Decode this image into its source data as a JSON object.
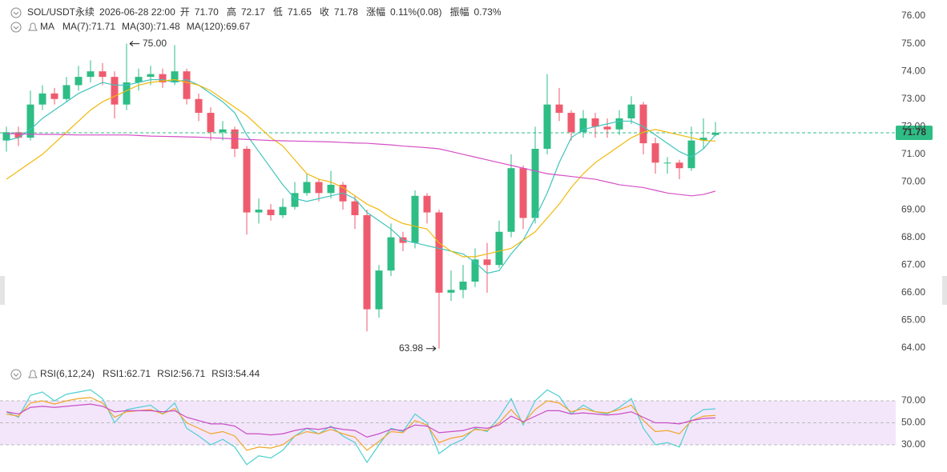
{
  "header": {
    "symbol": "SOL/USDT永续",
    "time": "2026-06-28 22:00",
    "fields": [
      {
        "label": "开",
        "value": "71.70"
      },
      {
        "label": "高",
        "value": "72.17"
      },
      {
        "label": "低",
        "value": "71.65"
      },
      {
        "label": "收",
        "value": "71.78"
      },
      {
        "label": "涨幅",
        "value": "0.11%(0.08)"
      },
      {
        "label": "振幅",
        "value": "0.73%"
      }
    ]
  },
  "chart_data": [
    {
      "type": "candlestick",
      "indicator": "MA",
      "up_color": "#2ebd85",
      "down_color": "#ef5b6e",
      "open": [
        71.5,
        71.8,
        71.6,
        72.8,
        73.2,
        73.0,
        73.5,
        73.8,
        74.0,
        73.8,
        72.8,
        73.6,
        73.8,
        73.9,
        73.6,
        74.0,
        73.0,
        72.5,
        71.8,
        71.9,
        71.2,
        68.9,
        69.0,
        68.8,
        69.1,
        69.6,
        70.0,
        69.6,
        69.9,
        69.3,
        68.8,
        65.4,
        66.8,
        68.0,
        67.8,
        69.5,
        68.9,
        66.0,
        66.1,
        66.4,
        67.2,
        67.0,
        68.2,
        70.5,
        68.7,
        71.2,
        72.8,
        72.5,
        71.8,
        72.3,
        72.0,
        71.9,
        72.3,
        72.8,
        71.4,
        70.7,
        70.7,
        70.5,
        71.5,
        71.7
      ],
      "high": [
        72.0,
        72.0,
        73.3,
        73.5,
        73.4,
        73.8,
        74.2,
        74.4,
        74.3,
        74.0,
        75.0,
        74.1,
        74.2,
        74.1,
        74.95,
        74.1,
        73.2,
        72.7,
        72.2,
        72.0,
        71.3,
        69.4,
        69.2,
        69.4,
        70.0,
        70.3,
        70.1,
        70.4,
        70.0,
        69.5,
        69.0,
        67.0,
        68.5,
        68.2,
        69.7,
        69.6,
        69.0,
        66.8,
        67.0,
        67.6,
        67.8,
        68.6,
        71.0,
        70.6,
        72.0,
        73.9,
        73.4,
        72.6,
        72.6,
        72.5,
        72.3,
        72.6,
        73.1,
        72.9,
        71.6,
        70.9,
        70.8,
        72.0,
        72.3,
        72.17
      ],
      "low": [
        71.1,
        71.3,
        71.5,
        72.6,
        72.8,
        72.9,
        73.3,
        73.6,
        73.5,
        72.3,
        72.6,
        73.3,
        73.5,
        73.4,
        73.5,
        72.8,
        72.2,
        71.5,
        71.5,
        70.9,
        68.1,
        68.5,
        68.6,
        68.7,
        69.0,
        69.5,
        69.3,
        69.4,
        69.0,
        68.3,
        64.6,
        65.1,
        66.6,
        67.5,
        67.6,
        68.5,
        63.98,
        65.7,
        65.8,
        66.2,
        66.0,
        66.9,
        68.0,
        68.3,
        68.5,
        71.0,
        72.2,
        71.5,
        71.6,
        71.6,
        71.6,
        71.7,
        72.1,
        71.0,
        70.3,
        70.3,
        70.1,
        70.4,
        71.2,
        71.65
      ],
      "close": [
        71.8,
        71.6,
        72.8,
        73.2,
        73.0,
        73.5,
        73.8,
        74.0,
        73.8,
        72.8,
        73.6,
        73.8,
        73.9,
        73.6,
        74.0,
        73.0,
        72.5,
        71.8,
        71.9,
        71.2,
        68.9,
        69.0,
        68.8,
        69.1,
        69.6,
        70.0,
        69.6,
        69.9,
        69.3,
        68.8,
        65.4,
        66.8,
        68.0,
        67.8,
        69.5,
        68.9,
        66.0,
        66.1,
        66.4,
        67.2,
        67.0,
        68.2,
        70.5,
        68.7,
        71.2,
        72.8,
        72.5,
        71.8,
        72.3,
        72.0,
        71.9,
        72.3,
        72.8,
        71.4,
        70.7,
        70.7,
        70.5,
        71.5,
        71.6,
        71.78
      ],
      "series": [
        {
          "name": "MA(7):71.71",
          "color": "#3fc4bd",
          "values": [
            71.5,
            71.6,
            71.9,
            72.3,
            72.6,
            72.9,
            73.2,
            73.4,
            73.6,
            73.5,
            73.5,
            73.6,
            73.7,
            73.7,
            73.6,
            73.7,
            73.5,
            73.2,
            72.9,
            72.5,
            71.7,
            71.1,
            70.5,
            69.9,
            69.4,
            69.3,
            69.4,
            69.5,
            69.6,
            69.4,
            68.9,
            68.6,
            68.3,
            67.9,
            67.8,
            67.7,
            67.6,
            67.5,
            67.4,
            67.1,
            66.7,
            66.8,
            67.4,
            67.9,
            68.7,
            69.6,
            70.7,
            71.6,
            71.9,
            72.0,
            72.1,
            72.2,
            72.2,
            72.0,
            71.7,
            71.4,
            71.1,
            70.9,
            71.2,
            71.71
          ]
        },
        {
          "name": "MA(30):71.48",
          "color": "#f0b90b",
          "values": [
            70.1,
            70.4,
            70.7,
            71.0,
            71.4,
            71.8,
            72.2,
            72.6,
            72.9,
            73.1,
            73.3,
            73.5,
            73.6,
            73.65,
            73.7,
            73.6,
            73.5,
            73.3,
            73.0,
            72.7,
            72.4,
            72.0,
            71.6,
            71.3,
            70.8,
            70.3,
            70.1,
            70.0,
            69.8,
            69.5,
            69.2,
            69.0,
            68.7,
            68.5,
            68.4,
            68.3,
            67.8,
            67.5,
            67.3,
            67.3,
            67.4,
            67.5,
            67.6,
            67.9,
            68.2,
            68.7,
            69.2,
            69.8,
            70.3,
            70.7,
            71.0,
            71.3,
            71.6,
            71.8,
            71.9,
            71.8,
            71.7,
            71.6,
            71.5,
            71.48
          ]
        },
        {
          "name": "MA(120):69.67",
          "color": "#d54fc6",
          "values": [
            71.75,
            71.74,
            71.73,
            71.72,
            71.72,
            71.71,
            71.7,
            71.7,
            71.7,
            71.7,
            71.7,
            71.68,
            71.66,
            71.65,
            71.64,
            71.63,
            71.62,
            71.6,
            71.58,
            71.56,
            71.54,
            71.52,
            71.5,
            71.49,
            71.48,
            71.47,
            71.46,
            71.45,
            71.43,
            71.41,
            71.4,
            71.37,
            71.34,
            71.3,
            71.27,
            71.24,
            71.2,
            71.1,
            71.0,
            70.9,
            70.8,
            70.7,
            70.6,
            70.5,
            70.4,
            70.3,
            70.25,
            70.2,
            70.15,
            70.1,
            70.0,
            69.9,
            69.85,
            69.8,
            69.7,
            69.6,
            69.55,
            69.5,
            69.55,
            69.67
          ]
        }
      ],
      "ylim": [
        64,
        76
      ],
      "yticks": [
        {
          "value": 64,
          "label": "64.00"
        },
        {
          "value": 65,
          "label": "65.00"
        },
        {
          "value": 66,
          "label": "66.00"
        },
        {
          "value": 67,
          "label": "67.00"
        },
        {
          "value": 68,
          "label": "68.00"
        },
        {
          "value": 69,
          "label": "69.00"
        },
        {
          "value": 70,
          "label": "70.00"
        },
        {
          "value": 71,
          "label": "71.00"
        },
        {
          "value": 72,
          "label": "72.00"
        },
        {
          "value": 73,
          "label": "73.00"
        },
        {
          "value": 74,
          "label": "74.00"
        },
        {
          "value": 75,
          "label": "75.00"
        },
        {
          "value": 76,
          "label": "76.00"
        }
      ],
      "last_price": {
        "value": 71.78,
        "label": "71.78",
        "color": "#2ebd85"
      },
      "annotations": [
        {
          "index": 10,
          "value": 75.0,
          "label": "75.00",
          "side": "right"
        },
        {
          "index": 36,
          "value": 63.98,
          "label": "63.98",
          "side": "left"
        }
      ]
    },
    {
      "type": "line",
      "indicator": "RSI(6,12,24)",
      "series": [
        {
          "name": "RSI1:62.71",
          "color": "#4fd0d0",
          "values": [
            60,
            55,
            75,
            78,
            70,
            76,
            78,
            80,
            72,
            50,
            62,
            64,
            66,
            58,
            68,
            45,
            38,
            30,
            35,
            28,
            12,
            20,
            18,
            25,
            38,
            45,
            40,
            47,
            38,
            32,
            14,
            30,
            45,
            42,
            58,
            50,
            22,
            30,
            35,
            45,
            42,
            55,
            72,
            48,
            70,
            80,
            74,
            58,
            66,
            60,
            58,
            64,
            72,
            45,
            30,
            32,
            28,
            55,
            62,
            62.71
          ]
        },
        {
          "name": "RSI2:56.71",
          "color": "#f0a52a",
          "values": [
            58,
            56,
            68,
            70,
            67,
            70,
            72,
            73,
            68,
            55,
            60,
            61,
            62,
            58,
            63,
            50,
            45,
            40,
            42,
            38,
            25,
            28,
            27,
            30,
            38,
            42,
            40,
            44,
            40,
            37,
            25,
            33,
            42,
            41,
            52,
            48,
            32,
            36,
            38,
            44,
            43,
            50,
            62,
            50,
            62,
            70,
            68,
            60,
            63,
            60,
            59,
            62,
            66,
            52,
            42,
            43,
            40,
            52,
            56,
            56.71
          ]
        },
        {
          "name": "RSI3:54.44",
          "color": "#c94fc4",
          "values": [
            60,
            58,
            64,
            65,
            64,
            65,
            66,
            67,
            65,
            60,
            61,
            61,
            61,
            60,
            61,
            55,
            52,
            49,
            49,
            47,
            40,
            40,
            39,
            40,
            43,
            45,
            44,
            46,
            44,
            43,
            37,
            40,
            44,
            43,
            48,
            47,
            41,
            42,
            43,
            46,
            45,
            48,
            56,
            51,
            56,
            61,
            61,
            58,
            59,
            58,
            57,
            58,
            60,
            55,
            50,
            50,
            49,
            52,
            54,
            54.44
          ]
        }
      ],
      "ylim": [
        6,
        85.27
      ],
      "yticks": [
        {
          "value": 30,
          "label": "30.00"
        },
        {
          "value": 50,
          "label": "50.00"
        },
        {
          "value": 70,
          "label": "70.00"
        }
      ],
      "band_color": "#f3e6fb"
    }
  ]
}
